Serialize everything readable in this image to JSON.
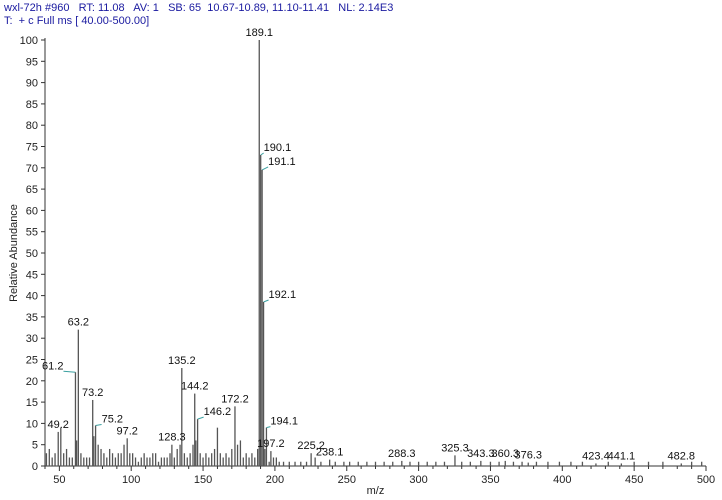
{
  "header": {
    "line1": "wxl-72h #960   RT: 11.08   AV: 1   SB: 65  10.67-10.89, 11.10-11.41   NL: 2.14E3",
    "line2": "T:  + c Full ms [ 40.00-500.00]"
  },
  "colors": {
    "spectrum": "#555555",
    "leader": "#3aa0a0",
    "header_text": "#1a1aa0"
  },
  "chart_data": {
    "type": "bar",
    "xlabel": "m/z",
    "ylabel": "Relative Abundance",
    "xlim": [
      40,
      500
    ],
    "ylim": [
      0,
      100
    ],
    "grid": false,
    "x_ticks": [
      "50",
      "100",
      "150",
      "200",
      "250",
      "300",
      "350",
      "400",
      "450",
      "500"
    ],
    "y_ticks": [
      "0",
      "5",
      "10",
      "15",
      "20",
      "25",
      "30",
      "35",
      "40",
      "45",
      "50",
      "55",
      "60",
      "65",
      "70",
      "75",
      "80",
      "85",
      "90",
      "95",
      "100"
    ],
    "peaks": [
      {
        "mz": 189.1,
        "intensity": 100,
        "label": "189.1"
      },
      {
        "mz": 190.1,
        "intensity": 73,
        "label": "190.1"
      },
      {
        "mz": 191.1,
        "intensity": 69.5,
        "label": "191.1"
      },
      {
        "mz": 192.1,
        "intensity": 38.5,
        "label": "192.1"
      },
      {
        "mz": 63.2,
        "intensity": 32,
        "label": "63.2"
      },
      {
        "mz": 61.2,
        "intensity": 22,
        "label": "61.2"
      },
      {
        "mz": 135.2,
        "intensity": 23,
        "label": "135.2"
      },
      {
        "mz": 144.2,
        "intensity": 17,
        "label": "144.2"
      },
      {
        "mz": 73.2,
        "intensity": 15.5,
        "label": "73.2"
      },
      {
        "mz": 172.2,
        "intensity": 14,
        "label": "172.2"
      },
      {
        "mz": 146.2,
        "intensity": 11,
        "label": "146.2"
      },
      {
        "mz": 75.2,
        "intensity": 9.5,
        "label": "75.2"
      },
      {
        "mz": 194.1,
        "intensity": 9,
        "label": "194.1"
      },
      {
        "mz": 49.2,
        "intensity": 8,
        "label": "49.2"
      },
      {
        "mz": 97.2,
        "intensity": 6.5,
        "label": "97.2"
      },
      {
        "mz": 128.3,
        "intensity": 5,
        "label": "128.3"
      },
      {
        "mz": 197.2,
        "intensity": 3.5,
        "label": "197.2"
      },
      {
        "mz": 225.2,
        "intensity": 3,
        "label": "225.2"
      },
      {
        "mz": 238.1,
        "intensity": 1.5,
        "label": "238.1"
      },
      {
        "mz": 288.3,
        "intensity": 1.2,
        "label": "288.3"
      },
      {
        "mz": 325.3,
        "intensity": 2.5,
        "label": "325.3"
      },
      {
        "mz": 343.3,
        "intensity": 1.2,
        "label": "343.3"
      },
      {
        "mz": 360.3,
        "intensity": 1.2,
        "label": "360.3"
      },
      {
        "mz": 376.3,
        "intensity": 0.8,
        "label": "376.3"
      },
      {
        "mz": 423.4,
        "intensity": 0.6,
        "label": "423.4"
      },
      {
        "mz": 441.1,
        "intensity": 0.6,
        "label": "441.1"
      },
      {
        "mz": 482.8,
        "intensity": 0.6,
        "label": "482.8"
      },
      {
        "mz": 41.0,
        "intensity": 3
      },
      {
        "mz": 43.0,
        "intensity": 4
      },
      {
        "mz": 45.0,
        "intensity": 2
      },
      {
        "mz": 47.0,
        "intensity": 3
      },
      {
        "mz": 51.0,
        "intensity": 9
      },
      {
        "mz": 53.0,
        "intensity": 3
      },
      {
        "mz": 55.0,
        "intensity": 4
      },
      {
        "mz": 57.0,
        "intensity": 2
      },
      {
        "mz": 59.0,
        "intensity": 2
      },
      {
        "mz": 62.0,
        "intensity": 6
      },
      {
        "mz": 65.0,
        "intensity": 3
      },
      {
        "mz": 67.0,
        "intensity": 2
      },
      {
        "mz": 69.0,
        "intensity": 2
      },
      {
        "mz": 71.0,
        "intensity": 2
      },
      {
        "mz": 74.0,
        "intensity": 7
      },
      {
        "mz": 77.0,
        "intensity": 5
      },
      {
        "mz": 79.0,
        "intensity": 4
      },
      {
        "mz": 81.0,
        "intensity": 3
      },
      {
        "mz": 83.0,
        "intensity": 2
      },
      {
        "mz": 85.0,
        "intensity": 4
      },
      {
        "mz": 87.0,
        "intensity": 3
      },
      {
        "mz": 89.0,
        "intensity": 2
      },
      {
        "mz": 91.0,
        "intensity": 3
      },
      {
        "mz": 93.0,
        "intensity": 3
      },
      {
        "mz": 95.0,
        "intensity": 5
      },
      {
        "mz": 99.0,
        "intensity": 3
      },
      {
        "mz": 101.0,
        "intensity": 3
      },
      {
        "mz": 103.0,
        "intensity": 2
      },
      {
        "mz": 105.0,
        "intensity": 1
      },
      {
        "mz": 107.0,
        "intensity": 2
      },
      {
        "mz": 109.0,
        "intensity": 3
      },
      {
        "mz": 111.0,
        "intensity": 2
      },
      {
        "mz": 113.0,
        "intensity": 2
      },
      {
        "mz": 115.0,
        "intensity": 3
      },
      {
        "mz": 117.0,
        "intensity": 3
      },
      {
        "mz": 119.0,
        "intensity": 1
      },
      {
        "mz": 121.0,
        "intensity": 2
      },
      {
        "mz": 123.0,
        "intensity": 2
      },
      {
        "mz": 125.0,
        "intensity": 2
      },
      {
        "mz": 127.0,
        "intensity": 3
      },
      {
        "mz": 130.0,
        "intensity": 2
      },
      {
        "mz": 132.0,
        "intensity": 4
      },
      {
        "mz": 134.0,
        "intensity": 5
      },
      {
        "mz": 137.0,
        "intensity": 3
      },
      {
        "mz": 139.0,
        "intensity": 2
      },
      {
        "mz": 141.0,
        "intensity": 3
      },
      {
        "mz": 143.0,
        "intensity": 5
      },
      {
        "mz": 145.0,
        "intensity": 6
      },
      {
        "mz": 148.0,
        "intensity": 3
      },
      {
        "mz": 150.0,
        "intensity": 2
      },
      {
        "mz": 152.0,
        "intensity": 3
      },
      {
        "mz": 154.0,
        "intensity": 2
      },
      {
        "mz": 156.0,
        "intensity": 3
      },
      {
        "mz": 158.0,
        "intensity": 4
      },
      {
        "mz": 160.0,
        "intensity": 9
      },
      {
        "mz": 162.0,
        "intensity": 3
      },
      {
        "mz": 164.0,
        "intensity": 2
      },
      {
        "mz": 166.0,
        "intensity": 3
      },
      {
        "mz": 168.0,
        "intensity": 2
      },
      {
        "mz": 170.0,
        "intensity": 4
      },
      {
        "mz": 174.0,
        "intensity": 5
      },
      {
        "mz": 176.0,
        "intensity": 6
      },
      {
        "mz": 178.0,
        "intensity": 2
      },
      {
        "mz": 180.0,
        "intensity": 3
      },
      {
        "mz": 182.0,
        "intensity": 2
      },
      {
        "mz": 184.0,
        "intensity": 3
      },
      {
        "mz": 186.0,
        "intensity": 2
      },
      {
        "mz": 188.0,
        "intensity": 4
      },
      {
        "mz": 193.0,
        "intensity": 4
      },
      {
        "mz": 196.0,
        "intensity": 1
      },
      {
        "mz": 199.0,
        "intensity": 2
      },
      {
        "mz": 201.0,
        "intensity": 2
      },
      {
        "mz": 203.0,
        "intensity": 1
      },
      {
        "mz": 206.0,
        "intensity": 1
      },
      {
        "mz": 210.0,
        "intensity": 1
      },
      {
        "mz": 214.0,
        "intensity": 1
      },
      {
        "mz": 218.0,
        "intensity": 1
      },
      {
        "mz": 222.0,
        "intensity": 1
      },
      {
        "mz": 228.0,
        "intensity": 2
      },
      {
        "mz": 232.0,
        "intensity": 1
      },
      {
        "mz": 242.0,
        "intensity": 1
      },
      {
        "mz": 248.0,
        "intensity": 1
      },
      {
        "mz": 252.0,
        "intensity": 1
      },
      {
        "mz": 258.0,
        "intensity": 1
      },
      {
        "mz": 264.0,
        "intensity": 1
      },
      {
        "mz": 270.0,
        "intensity": 1
      },
      {
        "mz": 276.0,
        "intensity": 1
      },
      {
        "mz": 282.0,
        "intensity": 1
      },
      {
        "mz": 294.0,
        "intensity": 1
      },
      {
        "mz": 300.0,
        "intensity": 1
      },
      {
        "mz": 306.0,
        "intensity": 1
      },
      {
        "mz": 312.0,
        "intensity": 1
      },
      {
        "mz": 318.0,
        "intensity": 1
      },
      {
        "mz": 330.0,
        "intensity": 1
      },
      {
        "mz": 336.0,
        "intensity": 1
      },
      {
        "mz": 350.0,
        "intensity": 1
      },
      {
        "mz": 356.0,
        "intensity": 1
      },
      {
        "mz": 366.0,
        "intensity": 1
      },
      {
        "mz": 372.0,
        "intensity": 1
      },
      {
        "mz": 382.0,
        "intensity": 1
      },
      {
        "mz": 390.0,
        "intensity": 1
      },
      {
        "mz": 398.0,
        "intensity": 1
      },
      {
        "mz": 406.0,
        "intensity": 1
      },
      {
        "mz": 414.0,
        "intensity": 1
      },
      {
        "mz": 432.0,
        "intensity": 1
      },
      {
        "mz": 450.0,
        "intensity": 1
      },
      {
        "mz": 460.0,
        "intensity": 1
      },
      {
        "mz": 470.0,
        "intensity": 1
      },
      {
        "mz": 490.0,
        "intensity": 1
      },
      {
        "mz": 497.0,
        "intensity": 1
      }
    ]
  }
}
